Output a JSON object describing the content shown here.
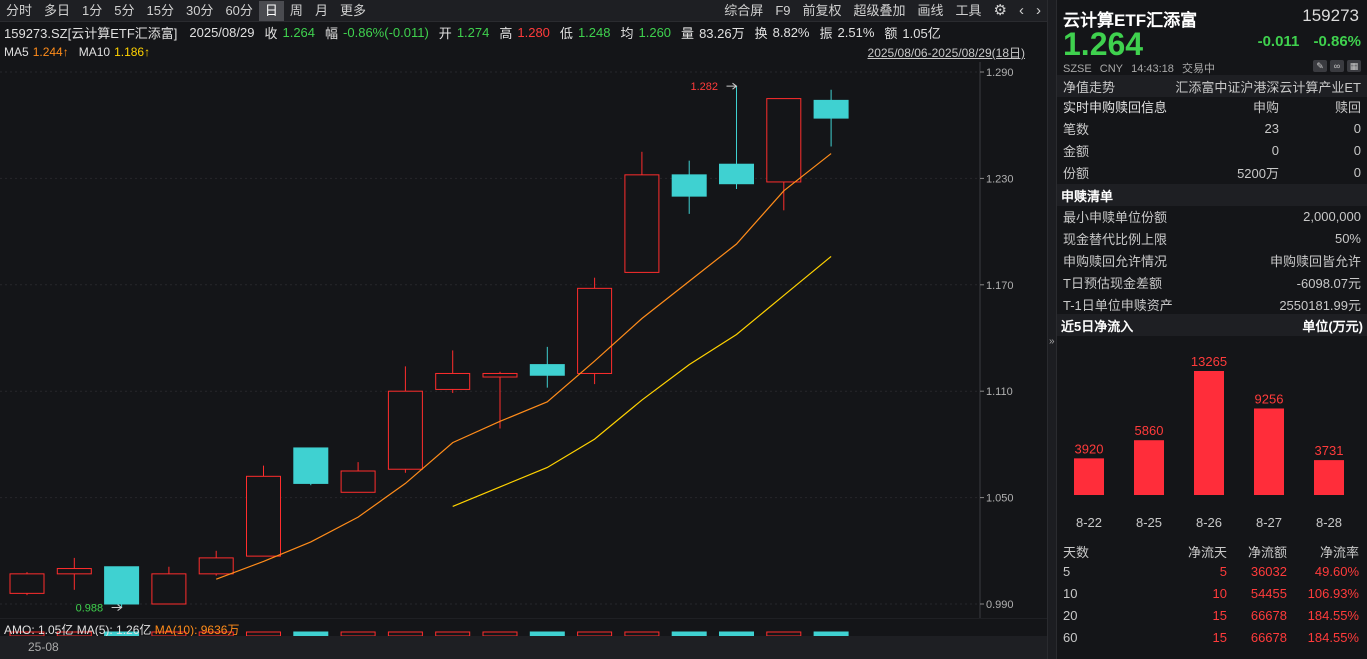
{
  "toolbar": {
    "periods": [
      "分时",
      "多日",
      "1分",
      "5分",
      "15分",
      "30分",
      "60分",
      "日",
      "周",
      "月",
      "更多"
    ],
    "active": "日",
    "tools": [
      "综合屏",
      "F9",
      "前复权",
      "超级叠加",
      "画线",
      "工具"
    ]
  },
  "info": {
    "code": "159273.SZ[云计算ETF汇添富]",
    "date": "2025/08/29",
    "close_label": "收",
    "close": "1.264",
    "amp_label": "幅",
    "amp": "-0.86%(-0.011)",
    "open_label": "开",
    "open": "1.274",
    "high_label": "高",
    "high": "1.280",
    "low_label": "低",
    "low": "1.248",
    "avg_label": "均",
    "avg": "1.260",
    "vol_label": "量",
    "vol": "83.26万",
    "turn_label": "换",
    "turn": "8.82%",
    "swing_label": "振",
    "swing": "2.51%",
    "amt_label": "额",
    "amt": "1.05亿"
  },
  "ma": {
    "ma5_label": "MA5",
    "ma5": "1.244↑",
    "ma10_label": "MA10",
    "ma10": "1.186↑"
  },
  "date_range": "2025/08/06-2025/08/29(18日)",
  "chart_data": {
    "type": "candlestick",
    "y_ticks": [
      "1.290",
      "1.230",
      "1.170",
      "1.110",
      "1.050",
      "0.990"
    ],
    "ylim": [
      0.99,
      1.29
    ],
    "annotations": {
      "high": "1.282",
      "low": "0.988"
    },
    "candles": [
      {
        "o": 0.996,
        "c": 1.007,
        "h": 1.008,
        "l": 0.995
      },
      {
        "o": 1.007,
        "c": 1.01,
        "h": 1.016,
        "l": 0.998
      },
      {
        "o": 1.011,
        "c": 0.99,
        "h": 1.011,
        "l": 0.988
      },
      {
        "o": 0.99,
        "c": 1.007,
        "h": 1.011,
        "l": 0.99
      },
      {
        "o": 1.007,
        "c": 1.016,
        "h": 1.02,
        "l": 1.006
      },
      {
        "o": 1.017,
        "c": 1.062,
        "h": 1.068,
        "l": 1.017
      },
      {
        "o": 1.078,
        "c": 1.058,
        "h": 1.078,
        "l": 1.057
      },
      {
        "o": 1.053,
        "c": 1.065,
        "h": 1.07,
        "l": 1.053
      },
      {
        "o": 1.066,
        "c": 1.11,
        "h": 1.124,
        "l": 1.064
      },
      {
        "o": 1.111,
        "c": 1.12,
        "h": 1.133,
        "l": 1.109
      },
      {
        "o": 1.118,
        "c": 1.12,
        "h": 1.121,
        "l": 1.089
      },
      {
        "o": 1.125,
        "c": 1.119,
        "h": 1.135,
        "l": 1.112
      },
      {
        "o": 1.12,
        "c": 1.168,
        "h": 1.174,
        "l": 1.114
      },
      {
        "o": 1.177,
        "c": 1.232,
        "h": 1.245,
        "l": 1.177
      },
      {
        "o": 1.232,
        "c": 1.22,
        "h": 1.24,
        "l": 1.21
      },
      {
        "o": 1.238,
        "c": 1.227,
        "h": 1.282,
        "l": 1.224
      },
      {
        "o": 1.228,
        "c": 1.275,
        "h": 1.275,
        "l": 1.212
      },
      {
        "o": 1.274,
        "c": 1.264,
        "h": 1.28,
        "l": 1.248
      }
    ],
    "ma5": [
      null,
      null,
      null,
      null,
      1.004,
      1.014,
      1.025,
      1.039,
      1.058,
      1.081,
      1.093,
      1.104,
      1.127,
      1.151,
      1.172,
      1.193,
      1.223,
      1.244
    ],
    "ma10": [
      null,
      null,
      null,
      null,
      null,
      null,
      null,
      null,
      null,
      1.045,
      1.056,
      1.067,
      1.083,
      1.105,
      1.125,
      1.142,
      1.164,
      1.186
    ]
  },
  "volume_bar": {
    "amo_label": "AMO: 1.05亿",
    "ma5_label": "MA(5): 1.26亿",
    "ma10_label": "MA(10): 9636万"
  },
  "x_axis_label": "25-08",
  "divider_arrow": "»",
  "right": {
    "title": "云计算ETF汇添富",
    "code": "159273",
    "price": "1.264",
    "change": "-0.011",
    "change_pct": "-0.86%",
    "meta": [
      "SZSE",
      "CNY",
      "14:43:18",
      "交易中"
    ],
    "nav_label": "净值走势",
    "nav_value": "汇添富中证沪港深云计算产业ET",
    "realtime_title": "实时申购赎回信息",
    "realtime_cols": [
      "申购",
      "赎回"
    ],
    "realtime_rows": [
      {
        "label": "笔数",
        "sub": "23",
        "red": "0"
      },
      {
        "label": "金额",
        "sub": "0",
        "red": "0"
      },
      {
        "label": "份额",
        "sub": "5200万",
        "red": "0"
      }
    ],
    "list_title": "申赎清单",
    "list_rows": [
      {
        "label": "最小申赎单位份额",
        "value": "2,000,000"
      },
      {
        "label": "现金替代比例上限",
        "value": "50%"
      },
      {
        "label": "申购赎回允许情况",
        "value": "申购赎回皆允许"
      },
      {
        "label": "T日预估现金差额",
        "value": "-6098.07元"
      },
      {
        "label": "T-1日单位申赎资产",
        "value": "2550181.99元"
      }
    ],
    "flow_title": "近5日净流入",
    "flow_unit": "单位(万元)",
    "flow_chart": {
      "type": "bar",
      "categories": [
        "8-22",
        "8-25",
        "8-26",
        "8-27",
        "8-28"
      ],
      "values": [
        3920,
        5860,
        13265,
        9256,
        3731
      ],
      "labels": [
        "3920",
        "5860",
        "13265",
        "9256",
        "3731"
      ]
    },
    "flow_table_cols": [
      "天数",
      "净流天",
      "净流额",
      "净流率"
    ],
    "flow_table": [
      [
        "5",
        "5",
        "36032",
        "49.60%"
      ],
      [
        "10",
        "10",
        "54455",
        "106.93%"
      ],
      [
        "20",
        "15",
        "66678",
        "184.55%"
      ],
      [
        "60",
        "15",
        "66678",
        "184.55%"
      ]
    ]
  }
}
